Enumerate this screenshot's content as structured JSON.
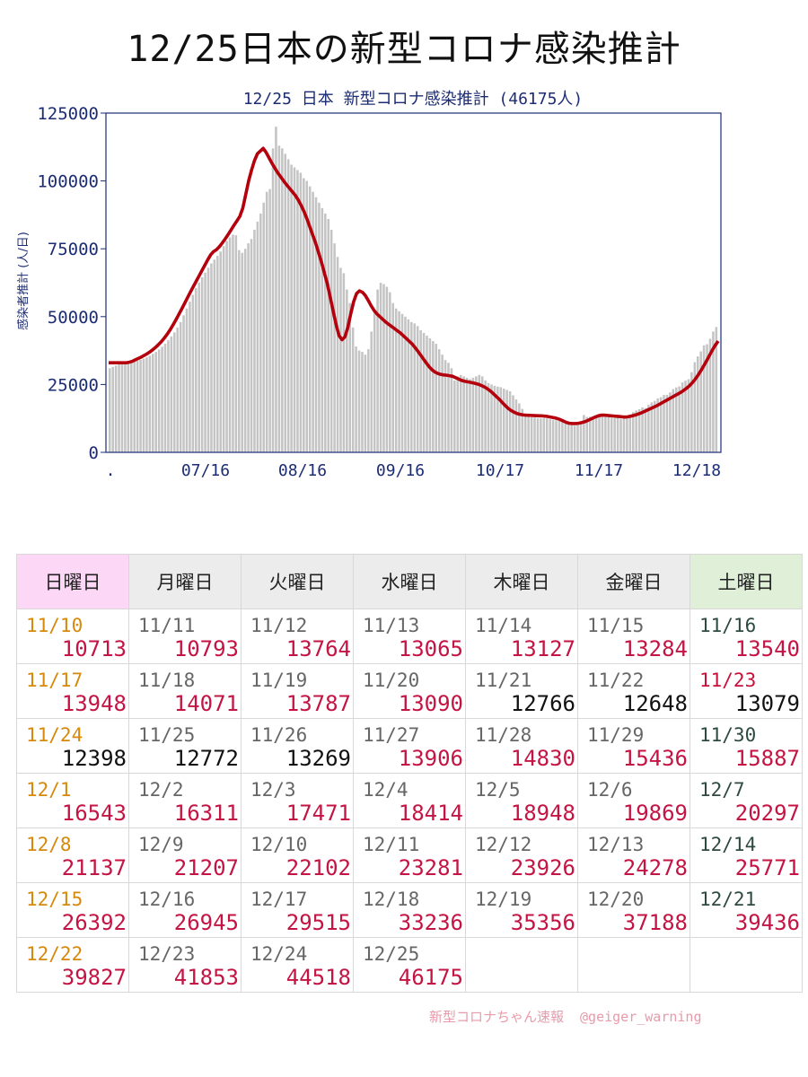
{
  "page_title": "12/25日本の新型コロナ感染推計",
  "chart_data": {
    "type": "bar",
    "title": "12/25 日本 新型コロナ感染推計 (46175人)",
    "ylabel": "感染者推計 (人/日)",
    "ylim": [
      0,
      125000
    ],
    "yticks": [
      "0",
      "25000",
      "50000",
      "75000",
      "100000",
      "125000"
    ],
    "xticks": [
      ".",
      "07/16",
      "08/16",
      "09/16",
      "10/17",
      "11/17",
      "12/18"
    ],
    "bar_values": [
      31000,
      31500,
      32000,
      32500,
      32800,
      33000,
      33200,
      33400,
      33600,
      33800,
      34100,
      34500,
      35000,
      35600,
      36300,
      37000,
      37900,
      38900,
      40000,
      41300,
      42700,
      44200,
      46000,
      48000,
      50500,
      53000,
      55500,
      58000,
      60500,
      62600,
      64500,
      66200,
      68000,
      69600,
      71000,
      72400,
      74000,
      76000,
      77900,
      79200,
      80200,
      80000,
      74500,
      73500,
      75000,
      77000,
      78600,
      82000,
      85000,
      88000,
      92000,
      96000,
      97000,
      112000,
      120000,
      113000,
      112000,
      110000,
      108000,
      106000,
      105000,
      104000,
      103000,
      101000,
      100000,
      98000,
      96000,
      94000,
      92000,
      90000,
      88000,
      86000,
      82000,
      77000,
      72000,
      68000,
      66000,
      60000,
      55000,
      46000,
      39000,
      37500,
      37000,
      36000,
      38000,
      44500,
      52000,
      60000,
      62500,
      62000,
      61000,
      59000,
      55000,
      53000,
      52000,
      51000,
      50000,
      49000,
      48000,
      47500,
      46500,
      45000,
      44000,
      43000,
      42000,
      41000,
      40000,
      38000,
      36000,
      34000,
      33000,
      31000,
      26500,
      28000,
      28500,
      28000,
      27500,
      27000,
      27500,
      28000,
      28500,
      28000,
      26500,
      25500,
      25000,
      24500,
      24200,
      24000,
      23500,
      23000,
      22500,
      21000,
      19500,
      18000,
      16000,
      14000,
      13500,
      13000,
      12800,
      12600,
      12500,
      12600,
      12500,
      12200,
      12000,
      11800,
      11600,
      11400,
      11000,
      10500,
      10000,
      9800,
      10713,
      10793,
      13764,
      13065,
      13127,
      13284,
      13540,
      13948,
      14071,
      13787,
      13090,
      12766,
      12648,
      13079,
      12398,
      12772,
      13269,
      13906,
      14830,
      15436,
      15887,
      16543,
      16311,
      17471,
      18414,
      18948,
      19869,
      20297,
      21137,
      21207,
      22102,
      23281,
      23926,
      24278,
      25771,
      26392,
      26945,
      29515,
      33236,
      35356,
      37188,
      39436,
      39827,
      41853,
      44518,
      46175
    ],
    "trend_values": [
      33000,
      33000,
      33000,
      33000,
      33000,
      33000,
      33000,
      33200,
      33500,
      34000,
      34500,
      35000,
      35600,
      36200,
      36900,
      37700,
      38600,
      39600,
      40700,
      42000,
      43400,
      45000,
      46800,
      48700,
      50700,
      52700,
      54800,
      56900,
      59000,
      61000,
      63000,
      65000,
      67000,
      69000,
      71000,
      72800,
      74000,
      74700,
      75800,
      77200,
      78700,
      80300,
      82000,
      83700,
      85300,
      87000,
      90000,
      95000,
      100000,
      104000,
      107500,
      110000,
      111000,
      112000,
      110500,
      108500,
      106500,
      104700,
      103000,
      101500,
      100000,
      98600,
      97300,
      96000,
      94700,
      93000,
      91000,
      88700,
      86000,
      83000,
      80000,
      77000,
      73500,
      70000,
      66000,
      62000,
      57000,
      52000,
      47000,
      43000,
      41500,
      42500,
      46000,
      51000,
      55500,
      58500,
      59500,
      59000,
      57800,
      56000,
      54000,
      52300,
      51000,
      50000,
      49000,
      48000,
      47200,
      46400,
      45600,
      44800,
      44000,
      43000,
      42000,
      41000,
      40000,
      38700,
      37300,
      35800,
      34300,
      32800,
      31400,
      30300,
      29500,
      29000,
      28700,
      28500,
      28400,
      28200,
      28000,
      27500,
      27000,
      26500,
      26200,
      26000,
      25800,
      25600,
      25300,
      25000,
      24500,
      24000,
      23300,
      22500,
      21500,
      20500,
      19500,
      18300,
      17200,
      16200,
      15400,
      14800,
      14300,
      14000,
      13800,
      13700,
      13650,
      13600,
      13550,
      13500,
      13450,
      13400,
      13300,
      13100,
      12900,
      12700,
      12400,
      12000,
      11500,
      11000,
      10700,
      10600,
      10600,
      10700,
      10900,
      11200,
      11600,
      12100,
      12600,
      13100,
      13500,
      13700,
      13700,
      13600,
      13500,
      13400,
      13300,
      13200,
      13100,
      13000,
      13100,
      13300,
      13600,
      13900,
      14300,
      14700,
      15200,
      15700,
      16200,
      16700,
      17200,
      17800,
      18400,
      19000,
      19600,
      20200,
      20800,
      21400,
      22000,
      22700,
      23500,
      24400,
      25500,
      26800,
      28300,
      30000,
      31800,
      33700,
      35700,
      37700,
      39500,
      41000
    ]
  },
  "calendar": {
    "headers": [
      "日曜日",
      "月曜日",
      "火曜日",
      "水曜日",
      "木曜日",
      "金曜日",
      "土曜日"
    ],
    "rows": [
      [
        [
          "11/10",
          "10713"
        ],
        [
          "11/11",
          "10793"
        ],
        [
          "11/12",
          "13764"
        ],
        [
          "11/13",
          "13065"
        ],
        [
          "11/14",
          "13127"
        ],
        [
          "11/15",
          "13284"
        ],
        [
          "11/16",
          "13540"
        ]
      ],
      [
        [
          "11/17",
          "13948"
        ],
        [
          "11/18",
          "14071"
        ],
        [
          "11/19",
          "13787"
        ],
        [
          "11/20",
          "13090"
        ],
        [
          "11/21",
          "12766"
        ],
        [
          "11/22",
          "12648"
        ],
        [
          "11/23",
          "13079"
        ]
      ],
      [
        [
          "11/24",
          "12398"
        ],
        [
          "11/25",
          "12772"
        ],
        [
          "11/26",
          "13269"
        ],
        [
          "11/27",
          "13906"
        ],
        [
          "11/28",
          "14830"
        ],
        [
          "11/29",
          "15436"
        ],
        [
          "11/30",
          "15887"
        ]
      ],
      [
        [
          "12/1",
          "16543"
        ],
        [
          "12/2",
          "16311"
        ],
        [
          "12/3",
          "17471"
        ],
        [
          "12/4",
          "18414"
        ],
        [
          "12/5",
          "18948"
        ],
        [
          "12/6",
          "19869"
        ],
        [
          "12/7",
          "20297"
        ]
      ],
      [
        [
          "12/8",
          "21137"
        ],
        [
          "12/9",
          "21207"
        ],
        [
          "12/10",
          "22102"
        ],
        [
          "12/11",
          "23281"
        ],
        [
          "12/12",
          "23926"
        ],
        [
          "12/13",
          "24278"
        ],
        [
          "12/14",
          "25771"
        ]
      ],
      [
        [
          "12/15",
          "26392"
        ],
        [
          "12/16",
          "26945"
        ],
        [
          "12/17",
          "29515"
        ],
        [
          "12/18",
          "33236"
        ],
        [
          "12/19",
          "35356"
        ],
        [
          "12/20",
          "37188"
        ],
        [
          "12/21",
          "39436"
        ]
      ],
      [
        [
          "12/22",
          "39827"
        ],
        [
          "12/23",
          "41853"
        ],
        [
          "12/24",
          "44518"
        ],
        [
          "12/25",
          "46175"
        ],
        null,
        null,
        null
      ]
    ],
    "decrease_cells": [
      "11/21",
      "11/22",
      "11/23",
      "11/24",
      "11/25",
      "11/26"
    ],
    "holiday_cells": [
      "11/23"
    ]
  },
  "footer": {
    "credit": "新型コロナちゃん速報",
    "handle": "@geiger_warning"
  },
  "colors": {
    "trend": "#b3000c",
    "bars": "#c4c4c4",
    "axis_text": "#1c2c74",
    "increase": "#c41443",
    "sunday_date": "#d6890a",
    "saturday_date": "#2d4a3e"
  }
}
